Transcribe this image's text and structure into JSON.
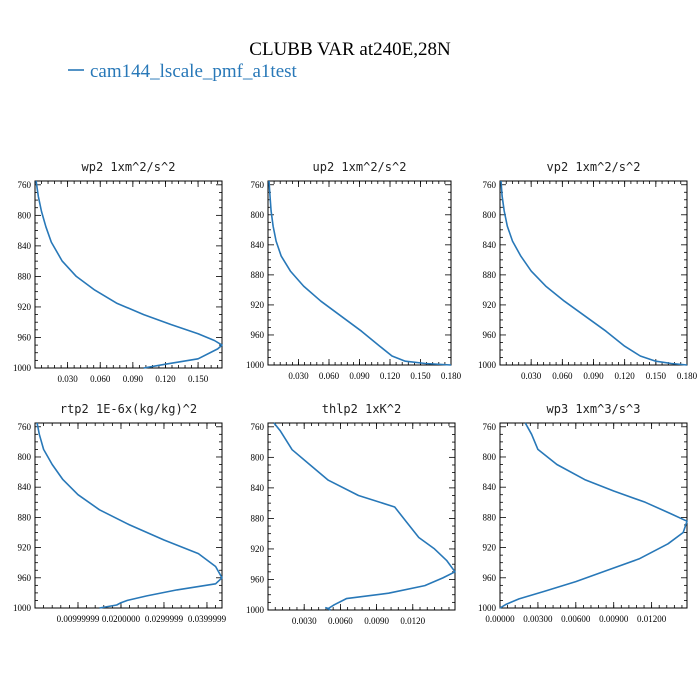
{
  "figure": {
    "title": "CLUBB VAR at240E,28N",
    "legend_label": "cam144_lscale_pmf_a1test",
    "series_color": "#2878b8"
  },
  "chart_data": [
    {
      "type": "line",
      "title": "wp2   1xm^2/s^2",
      "ylim": [
        1000,
        755
      ],
      "y_ticks": [
        760,
        800,
        840,
        880,
        920,
        960,
        1000
      ],
      "xlim": [
        0,
        0.172
      ],
      "x_ticks": [
        0.03,
        0.06,
        0.09,
        0.12,
        0.15
      ],
      "x_tick_labels": [
        "0.030",
        "0.060",
        "0.090",
        "0.120",
        "0.150"
      ],
      "series": [
        {
          "x": [
            0.001,
            0.003,
            0.006,
            0.01,
            0.015,
            0.025,
            0.038,
            0.055,
            0.075,
            0.1,
            0.125,
            0.15,
            0.165,
            0.172,
            0.168,
            0.15,
            0.12,
            0.1
          ],
          "y": [
            755,
            775,
            795,
            815,
            835,
            860,
            880,
            898,
            915,
            930,
            943,
            955,
            964,
            970,
            975,
            988,
            995,
            1000
          ]
        }
      ]
    },
    {
      "type": "line",
      "title": "up2   1xm^2/s^2",
      "ylim": [
        1000,
        755
      ],
      "y_ticks": [
        760,
        800,
        840,
        880,
        920,
        960,
        1000
      ],
      "xlim": [
        0,
        0.18
      ],
      "x_ticks": [
        0.03,
        0.06,
        0.09,
        0.12,
        0.15,
        0.18
      ],
      "x_tick_labels": [
        "0.030",
        "0.060",
        "0.090",
        "0.120",
        "0.150",
        "0.180"
      ],
      "series": [
        {
          "x": [
            0.001,
            0.002,
            0.003,
            0.005,
            0.008,
            0.013,
            0.022,
            0.035,
            0.052,
            0.072,
            0.092,
            0.11,
            0.122,
            0.135,
            0.155,
            0.18
          ],
          "y": [
            755,
            775,
            795,
            815,
            835,
            855,
            875,
            895,
            915,
            935,
            955,
            975,
            988,
            995,
            998,
            1000
          ]
        }
      ]
    },
    {
      "type": "line",
      "title": "vp2   1xm^2/s^2",
      "ylim": [
        1000,
        755
      ],
      "y_ticks": [
        760,
        800,
        840,
        880,
        920,
        960,
        1000
      ],
      "xlim": [
        0,
        0.18
      ],
      "x_ticks": [
        0.03,
        0.06,
        0.09,
        0.12,
        0.15,
        0.18
      ],
      "x_tick_labels": [
        "0.030",
        "0.060",
        "0.090",
        "0.120",
        "0.150",
        "0.180"
      ],
      "series": [
        {
          "x": [
            0.001,
            0.002,
            0.004,
            0.007,
            0.012,
            0.02,
            0.03,
            0.044,
            0.062,
            0.082,
            0.102,
            0.12,
            0.135,
            0.15,
            0.165,
            0.18
          ],
          "y": [
            755,
            775,
            795,
            815,
            835,
            855,
            875,
            895,
            915,
            935,
            955,
            975,
            988,
            995,
            998,
            1000
          ]
        }
      ]
    },
    {
      "type": "line",
      "title": "rtp2   1E-6x(kg/kg)^2",
      "ylim": [
        1000,
        755
      ],
      "y_ticks": [
        760,
        800,
        840,
        880,
        920,
        960,
        1000
      ],
      "xlim": [
        0,
        0.0435
      ],
      "x_ticks": [
        0.01,
        0.02,
        0.03,
        0.04
      ],
      "x_tick_labels": [
        "0.00999999",
        "0.0200000",
        "0.0299999",
        "0.0399999"
      ],
      "series": [
        {
          "x": [
            0.0005,
            0.001,
            0.002,
            0.004,
            0.0065,
            0.01,
            0.015,
            0.022,
            0.03,
            0.038,
            0.042,
            0.0435,
            0.042,
            0.033,
            0.026,
            0.0215,
            0.02,
            0.019,
            0.017,
            0.015
          ],
          "y": [
            755,
            770,
            790,
            810,
            830,
            850,
            870,
            890,
            910,
            928,
            945,
            960,
            968,
            976,
            984,
            990,
            993,
            996,
            998,
            1000
          ]
        }
      ]
    },
    {
      "type": "line",
      "title": "thlp2   1xK^2",
      "ylim": [
        1000,
        755
      ],
      "y_ticks": [
        760,
        800,
        840,
        880,
        920,
        960,
        1000
      ],
      "xlim": [
        0,
        0.0155
      ],
      "x_ticks": [
        0.003,
        0.006,
        0.009,
        0.012
      ],
      "x_tick_labels": [
        "0.0030",
        "0.0060",
        "0.0090",
        "0.0120"
      ],
      "series": [
        {
          "x": [
            0.0005,
            0.001,
            0.002,
            0.0035,
            0.005,
            0.0075,
            0.0105,
            0.0115,
            0.0125,
            0.0138,
            0.0148,
            0.0155,
            0.0145,
            0.013,
            0.01,
            0.0065,
            0.0055,
            0.005,
            0.0048,
            0.0052
          ],
          "y": [
            755,
            765,
            790,
            810,
            830,
            850,
            865,
            885,
            905,
            920,
            935,
            950,
            958,
            968,
            978,
            985,
            993,
            998,
            997,
            1000
          ]
        }
      ]
    },
    {
      "type": "line",
      "title": "wp3   1xm^3/s^3",
      "ylim": [
        1000,
        755
      ],
      "y_ticks": [
        760,
        800,
        840,
        880,
        920,
        960,
        1000
      ],
      "xlim": [
        0,
        0.0148
      ],
      "x_ticks": [
        0.0,
        0.003,
        0.006,
        0.009,
        0.012
      ],
      "x_tick_labels": [
        "0.00000",
        "0.00300",
        "0.00600",
        "0.00900",
        "0.01200"
      ],
      "series": [
        {
          "x": [
            0.002,
            0.0025,
            0.003,
            0.0045,
            0.0067,
            0.009,
            0.0115,
            0.0135,
            0.0148,
            0.0145,
            0.0133,
            0.011,
            0.0085,
            0.006,
            0.0035,
            0.0015,
            0.0005,
            0.0
          ],
          "y": [
            755,
            770,
            790,
            810,
            830,
            845,
            860,
            875,
            885,
            900,
            915,
            935,
            950,
            965,
            978,
            988,
            995,
            1000
          ]
        }
      ]
    }
  ]
}
